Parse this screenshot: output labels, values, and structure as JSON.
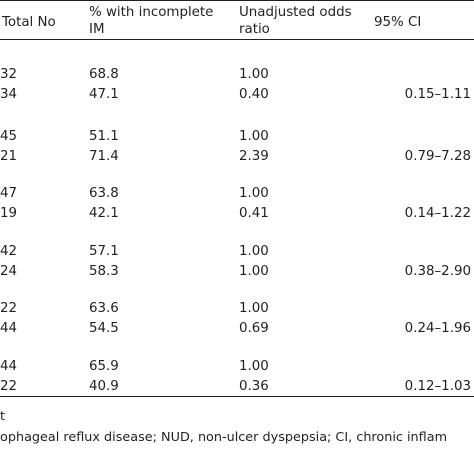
{
  "headers": {
    "total": "Total No",
    "pct": "% with incomplete\nIM",
    "or": "Unadjusted odds\nratio",
    "ci": "95% CI"
  },
  "groups": [
    {
      "rows": [
        {
          "total": "32",
          "pct": "68.8",
          "or": "1.00",
          "ci": ""
        },
        {
          "total": "34",
          "pct": "47.1",
          "or": "0.40",
          "ci": "0.15–1.11"
        }
      ]
    },
    {
      "rows": [
        {
          "total": "45",
          "pct": "51.1",
          "or": "1.00",
          "ci": ""
        },
        {
          "total": "21",
          "pct": "71.4",
          "or": "2.39",
          "ci": "0.79–7.28"
        }
      ]
    },
    {
      "rows": [
        {
          "total": "47",
          "pct": "63.8",
          "or": "1.00",
          "ci": ""
        },
        {
          "total": "19",
          "pct": "42.1",
          "or": "0.41",
          "ci": "0.14–1.22"
        }
      ]
    },
    {
      "rows": [
        {
          "total": "42",
          "pct": "57.1",
          "or": "1.00",
          "ci": ""
        },
        {
          "total": "24",
          "pct": "58.3",
          "or": "1.00",
          "ci": "0.38–2.90"
        }
      ]
    },
    {
      "rows": [
        {
          "total": "22",
          "pct": "63.6",
          "or": "1.00",
          "ci": ""
        },
        {
          "total": "44",
          "pct": "54.5",
          "or": "0.69",
          "ci": "0.24–1.96"
        }
      ]
    },
    {
      "rows": [
        {
          "total": "44",
          "pct": "65.9",
          "or": "1.00",
          "ci": ""
        },
        {
          "total": "22",
          "pct": "40.9",
          "or": "0.36",
          "ci": "0.12–1.03"
        }
      ]
    }
  ],
  "footnotes": [
    "t",
    "ophageal reflux disease; NUD, non-ulcer dyspepsia; CI, chronic inflam"
  ]
}
